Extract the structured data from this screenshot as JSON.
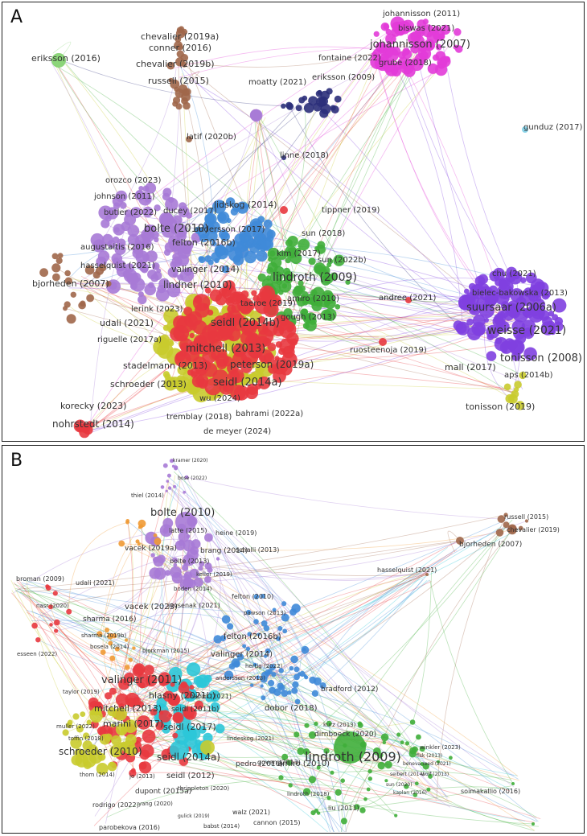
{
  "panels": [
    {
      "id": "A",
      "label": "A",
      "clusters": [
        {
          "color": "#e8393f",
          "name": "red"
        },
        {
          "color": "#3fae3a",
          "name": "green"
        },
        {
          "color": "#3f8ad8",
          "name": "blue"
        },
        {
          "color": "#c9cb2e",
          "name": "yellow"
        },
        {
          "color": "#a77ad6",
          "name": "light-purple"
        },
        {
          "color": "#1f9fa3",
          "name": "teal"
        },
        {
          "color": "#a0674a",
          "name": "brown"
        },
        {
          "color": "#e23bd8",
          "name": "magenta"
        },
        {
          "color": "#7f40e0",
          "name": "violet"
        },
        {
          "color": "#2b2f7a",
          "name": "navy"
        },
        {
          "color": "#80d0e8",
          "name": "light-blue"
        },
        {
          "color": "#7fd06a",
          "name": "light-green"
        }
      ],
      "labels": [
        "eriksson (2016)",
        "chevalier (2019a)",
        "conner (2016)",
        "chevalier (2019b)",
        "russell (2015)",
        "johannisson (2011)",
        "biswas (2021)",
        "johannisson (2007)",
        "grube (2018)",
        "fontaine (2022)",
        "eriksson (2009)",
        "moatty (2021)",
        "gunduz (2017)",
        "linne (2018)",
        "latif (2020b)",
        "orozco (2023)",
        "johnson (2011)",
        "butler (2022)",
        "ducey (2017)",
        "lidskog (2014)",
        "tippner (2019)",
        "bolte (2010)",
        "andersson (2017)",
        "sun (2018)",
        "augustaitis (2016)",
        "felton (2016b)",
        "kim (2017)",
        "sun (2022b)",
        "hasselquist (2021)",
        "valinger (2014)",
        "chu (2021)",
        "bielec-bakowska (2013)",
        "bjorheden (2007)",
        "lindner (2010)",
        "lindroth (2009)",
        "amiro (2010)",
        "andree (2021)",
        "taeroe (2019)",
        "suursaar (2006a)",
        "lerink (2023)",
        "udali (2021)",
        "seidl (2014b)",
        "weisse (2021)",
        "gough (2013)",
        "riguelle (2017a)",
        "ruosteenoja (2019)",
        "tonisson (2008)",
        "mitchell (2013)",
        "stadelmann (2013)",
        "peterson (2019a)",
        "mall (2017)",
        "aps (2014b)",
        "seidl (2014a)",
        "schroeder (2013)",
        "korecky (2023)",
        "wu (2024)",
        "tonisson (2019)",
        "nohrstedt (2014)",
        "tremblay (2018)",
        "bahrami (2022a)",
        "de meyer (2024)"
      ]
    },
    {
      "id": "B",
      "label": "B",
      "clusters": [
        {
          "color": "#e8393f",
          "name": "red"
        },
        {
          "color": "#3fae3a",
          "name": "green"
        },
        {
          "color": "#3f8ad8",
          "name": "blue"
        },
        {
          "color": "#c9cb2e",
          "name": "yellow"
        },
        {
          "color": "#a77ad6",
          "name": "purple"
        },
        {
          "color": "#2cc7d8",
          "name": "cyan"
        },
        {
          "color": "#f09a35",
          "name": "orange"
        },
        {
          "color": "#a0674a",
          "name": "brown"
        }
      ],
      "labels": [
        "kramer (2020)",
        "bose (2022)",
        "thiel (2014)",
        "bolte (2010)",
        "latte (2015)",
        "heine (2019)",
        "russell (2015)",
        "chevalier (2019)",
        "brang (2014)",
        "bjorheden (2007)",
        "vacek (2019a)",
        "bolte (2013)",
        "schalli (2013)",
        "broman (2009)",
        "keller (2019)",
        "udali (2021)",
        "boden (2014)",
        "felton (2010)",
        "hasselquist (2021)",
        "nasr (2020)",
        "vacek (2023)",
        "jevsenak (2021)",
        "pawson (2013)",
        "sharma (2016)",
        "sharma (2019b)",
        "bosela (2014)",
        "felton (2016b)",
        "esseen (2022)",
        "bjorkman (2015)",
        "valinger (2014)",
        "hertig (2022)",
        "andersson (2018)",
        "valinger (2011)",
        "bradford (2012)",
        "taylor (2019)",
        "hlasny (2021b)",
        "nahm (2021)",
        "mitchell (2013)",
        "seidl (2011b)",
        "dobor (2018)",
        "kurz (2013)",
        "muller (2022)",
        "marini (2017)",
        "seidl (2017)",
        "toffin (2018)",
        "dirnboeck (2020)",
        "lindeskog (2021)",
        "schroeder (2010)",
        "lindroth (2009)",
        "winkler (2023)",
        "fisk (2013)",
        "seidl (2014a)",
        "pedro (2016)",
        "beneva-reed (2021)",
        "thom (2014)",
        "seibert (2014)",
        "wolf (2013)",
        "amiro (2010)",
        "goven (2013)",
        "seidl (2012)",
        "sun (2020)",
        "jo (2013)",
        "thrippleton (2020)",
        "kaplan (2016)",
        "soimakallio (2016)",
        "dupont (2015a)",
        "lindroth (2018)",
        "rodrigo (2022)",
        "yang (2020)",
        "liu (2011)",
        "walz (2021)",
        "gulick (2019)",
        "cannon (2015)",
        "parobekova (2016)",
        "babst (2014)",
        "sun (2012)",
        "messori (2019)",
        "sun (2022a)"
      ]
    }
  ]
}
